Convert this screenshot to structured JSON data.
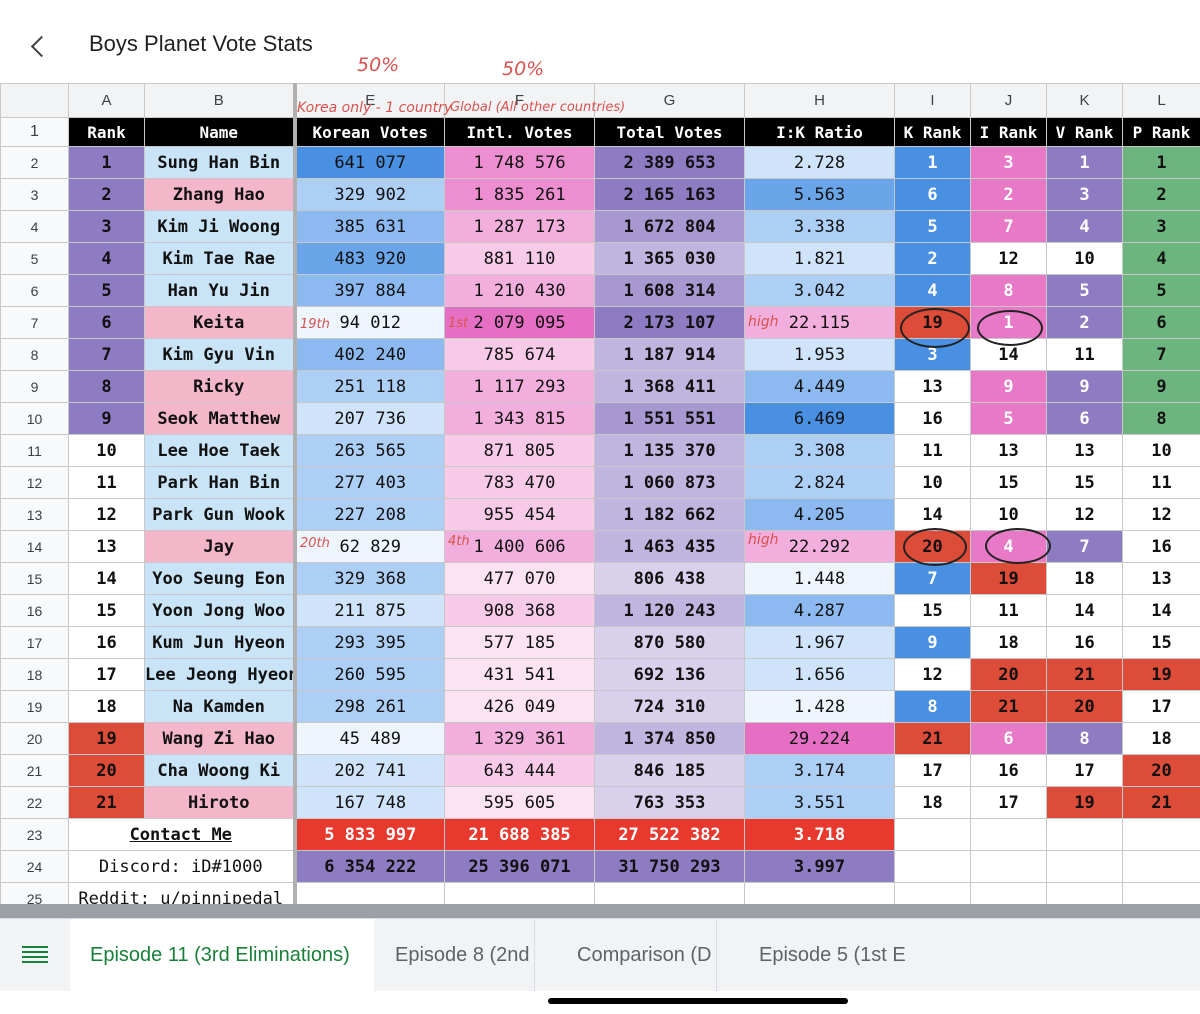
{
  "app": {
    "title": "Boys Planet Vote Stats"
  },
  "annotations": {
    "e_pct": "50%",
    "f_pct": "50%",
    "e_note": "Korea only - 1 country",
    "f_note": "Global (All other countries)",
    "keita_k": "19th",
    "keita_i": "1st",
    "jay_k": "20th",
    "jay_i": "4th",
    "high": "high"
  },
  "columns": [
    "A",
    "B",
    "E",
    "F",
    "G",
    "H",
    "I",
    "J",
    "K",
    "L"
  ],
  "row_numbers": [
    "1",
    "2",
    "3",
    "4",
    "5",
    "6",
    "7",
    "8",
    "9",
    "10",
    "11",
    "12",
    "13",
    "14",
    "15",
    "16",
    "17",
    "18",
    "19",
    "20",
    "21",
    "22",
    "23",
    "24",
    "25"
  ],
  "header": [
    "Rank",
    "Name",
    "Korean Votes",
    "Intl. Votes",
    "Total Votes",
    "I:K Ratio",
    "K Rank",
    "I Rank",
    "V Rank",
    "P Rank"
  ],
  "rows": [
    [
      "1",
      "Sung Han Bin",
      "641 077",
      "1 748 576",
      "2 389 653",
      "2.728",
      "1",
      "3",
      "1",
      "1"
    ],
    [
      "2",
      "Zhang Hao",
      "329 902",
      "1 835 261",
      "2 165 163",
      "5.563",
      "6",
      "2",
      "3",
      "2"
    ],
    [
      "3",
      "Kim Ji Woong",
      "385 631",
      "1 287 173",
      "1 672 804",
      "3.338",
      "5",
      "7",
      "4",
      "3"
    ],
    [
      "4",
      "Kim Tae Rae",
      "483 920",
      "881 110",
      "1 365 030",
      "1.821",
      "2",
      "12",
      "10",
      "4"
    ],
    [
      "5",
      "Han Yu Jin",
      "397 884",
      "1 210 430",
      "1 608 314",
      "3.042",
      "4",
      "8",
      "5",
      "5"
    ],
    [
      "6",
      "Keita",
      "94 012",
      "2 079 095",
      "2 173 107",
      "22.115",
      "19",
      "1",
      "2",
      "6"
    ],
    [
      "7",
      "Kim Gyu Vin",
      "402 240",
      "785 674",
      "1 187 914",
      "1.953",
      "3",
      "14",
      "11",
      "7"
    ],
    [
      "8",
      "Ricky",
      "251 118",
      "1 117 293",
      "1 368 411",
      "4.449",
      "13",
      "9",
      "9",
      "9"
    ],
    [
      "9",
      "Seok Matthew",
      "207 736",
      "1 343 815",
      "1 551 551",
      "6.469",
      "16",
      "5",
      "6",
      "8"
    ],
    [
      "10",
      "Lee Hoe Taek",
      "263 565",
      "871 805",
      "1 135 370",
      "3.308",
      "11",
      "13",
      "13",
      "10"
    ],
    [
      "11",
      "Park Han Bin",
      "277 403",
      "783 470",
      "1 060 873",
      "2.824",
      "10",
      "15",
      "15",
      "11"
    ],
    [
      "12",
      "Park Gun Wook",
      "227 208",
      "955 454",
      "1 182 662",
      "4.205",
      "14",
      "10",
      "12",
      "12"
    ],
    [
      "13",
      "Jay",
      "62 829",
      "1 400 606",
      "1 463 435",
      "22.292",
      "20",
      "4",
      "7",
      "16"
    ],
    [
      "14",
      "Yoo Seung Eon",
      "329 368",
      "477 070",
      "806 438",
      "1.448",
      "7",
      "19",
      "18",
      "13"
    ],
    [
      "15",
      "Yoon Jong Woo",
      "211 875",
      "908 368",
      "1 120 243",
      "4.287",
      "15",
      "11",
      "14",
      "14"
    ],
    [
      "16",
      "Kum Jun Hyeon",
      "293 395",
      "577 185",
      "870 580",
      "1.967",
      "9",
      "18",
      "16",
      "15"
    ],
    [
      "17",
      "Lee Jeong Hyeon",
      "260 595",
      "431 541",
      "692 136",
      "1.656",
      "12",
      "20",
      "21",
      "19"
    ],
    [
      "18",
      "Na Kamden",
      "298 261",
      "426 049",
      "724 310",
      "1.428",
      "8",
      "21",
      "20",
      "17"
    ],
    [
      "19",
      "Wang Zi Hao",
      "45 489",
      "1 329 361",
      "1 374 850",
      "29.224",
      "21",
      "6",
      "8",
      "18"
    ],
    [
      "20",
      "Cha Woong Ki",
      "202 741",
      "643 444",
      "846 185",
      "3.174",
      "17",
      "16",
      "17",
      "20"
    ],
    [
      "21",
      "Hiroto",
      "167 748",
      "595 605",
      "763 353",
      "3.551",
      "18",
      "17",
      "19",
      "21"
    ]
  ],
  "footer": {
    "contact": "Contact Me",
    "discord": "Discord: iD#1000",
    "reddit": "Reddit: u/pinnipedal",
    "totals_red": [
      "5 833 997",
      "21 688 385",
      "27 522 382",
      "3.718"
    ],
    "totals_purple": [
      "6 354 222",
      "25 396 071",
      "31 750 293",
      "3.997"
    ]
  },
  "tabs": [
    "Episode 11 (3rd Eliminations)",
    "Episode 8 (2nd",
    "Comparison (D",
    "Episode 5 (1st E"
  ],
  "colors": {
    "accent_green": "#188038",
    "purple": "#8e7cc3",
    "red": "#dd4b39",
    "pink": "#e879c6",
    "blue": "#4a90e2",
    "green": "#6db57f"
  }
}
